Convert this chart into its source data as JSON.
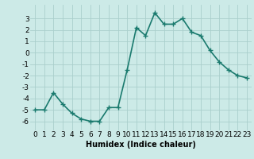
{
  "x": [
    0,
    1,
    2,
    3,
    4,
    5,
    6,
    7,
    8,
    9,
    10,
    11,
    12,
    13,
    14,
    15,
    16,
    17,
    18,
    19,
    20,
    21,
    22,
    23
  ],
  "y": [
    -5.0,
    -5.0,
    -3.5,
    -4.5,
    -5.3,
    -5.8,
    -6.0,
    -6.0,
    -4.8,
    -4.8,
    -1.5,
    2.2,
    1.5,
    3.5,
    2.5,
    2.5,
    3.0,
    1.8,
    1.5,
    0.2,
    -0.8,
    -1.5,
    -2.0,
    -2.2
  ],
  "line_color": "#1a7a6e",
  "bg_color": "#cceae7",
  "grid_color": "#aacfcc",
  "xlabel": "Humidex (Indice chaleur)",
  "xlim": [
    -0.5,
    23.5
  ],
  "ylim": [
    -6.8,
    4.2
  ],
  "yticks": [
    -6,
    -5,
    -4,
    -3,
    -2,
    -1,
    0,
    1,
    2,
    3
  ],
  "xtick_labels": [
    "0",
    "1",
    "2",
    "3",
    "4",
    "5",
    "6",
    "7",
    "8",
    "9",
    "10",
    "11",
    "12",
    "13",
    "14",
    "15",
    "16",
    "17",
    "18",
    "19",
    "20",
    "21",
    "22",
    "23"
  ],
  "marker": "+",
  "marker_size": 4,
  "marker_ew": 1.0,
  "line_width": 1.2,
  "font_size": 6.5,
  "xlabel_fontsize": 7.0
}
